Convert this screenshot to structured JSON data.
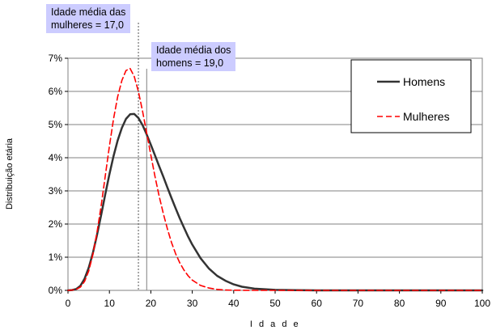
{
  "chart_data": {
    "type": "line",
    "xlabel": "I d a d e",
    "ylabel": "Distribuição etária",
    "xlim": [
      0,
      100
    ],
    "ylim": [
      0,
      7
    ],
    "x_ticks": [
      "0",
      "10",
      "20",
      "30",
      "40",
      "50",
      "60",
      "70",
      "80",
      "90",
      "100"
    ],
    "y_ticks": [
      "0%",
      "1%",
      "2%",
      "3%",
      "4%",
      "5%",
      "6%",
      "7%"
    ],
    "y_unit": "%",
    "grid": "horizontal",
    "legend_position": "top-right",
    "series": [
      {
        "name": "Homens",
        "color": "#333333",
        "style": "solid",
        "x": [
          0,
          1,
          2,
          3,
          4,
          5,
          6,
          7,
          8,
          9,
          10,
          11,
          12,
          13,
          14,
          15,
          16,
          17,
          18,
          19,
          20,
          21,
          22,
          23,
          24,
          25,
          26,
          27,
          28,
          29,
          30,
          32,
          34,
          36,
          38,
          40,
          42,
          45,
          50,
          55,
          60,
          70,
          80,
          90,
          100
        ],
        "y": [
          0,
          0.01,
          0.04,
          0.14,
          0.35,
          0.68,
          1.12,
          1.66,
          2.27,
          2.9,
          3.5,
          4.05,
          4.52,
          4.9,
          5.17,
          5.31,
          5.32,
          5.2,
          4.98,
          4.7,
          4.39,
          4.07,
          3.75,
          3.43,
          3.1,
          2.78,
          2.47,
          2.17,
          1.89,
          1.62,
          1.38,
          0.97,
          0.66,
          0.44,
          0.29,
          0.18,
          0.11,
          0.05,
          0.015,
          0.004,
          0.001,
          0,
          0,
          0,
          0
        ]
      },
      {
        "name": "Mulheres",
        "color": "#ff0000",
        "style": "dashed",
        "x": [
          0,
          1,
          2,
          3,
          4,
          5,
          6,
          7,
          8,
          9,
          10,
          11,
          12,
          13,
          14,
          15,
          16,
          17,
          18,
          19,
          20,
          21,
          22,
          23,
          24,
          25,
          26,
          27,
          28,
          29,
          30,
          32,
          34,
          36,
          38,
          40,
          45,
          50,
          60,
          70,
          80,
          90,
          100
        ],
        "y": [
          0,
          0.01,
          0.03,
          0.1,
          0.27,
          0.58,
          1.07,
          1.74,
          2.55,
          3.45,
          4.35,
          5.17,
          5.84,
          6.33,
          6.63,
          6.69,
          6.45,
          6.0,
          5.4,
          4.74,
          4.08,
          3.44,
          2.85,
          2.32,
          1.85,
          1.44,
          1.1,
          0.83,
          0.61,
          0.44,
          0.31,
          0.15,
          0.07,
          0.03,
          0.01,
          0.005,
          0,
          0,
          0,
          0,
          0,
          0,
          0
        ]
      }
    ],
    "reference_lines": [
      {
        "x": 17.0,
        "style": "dotted",
        "label_lines": [
          "Idade média das",
          "mulheres = 17,0"
        ]
      },
      {
        "x": 19.0,
        "style": "solid",
        "label_lines": [
          "Idade média dos",
          "homens = 19,0"
        ]
      }
    ]
  }
}
